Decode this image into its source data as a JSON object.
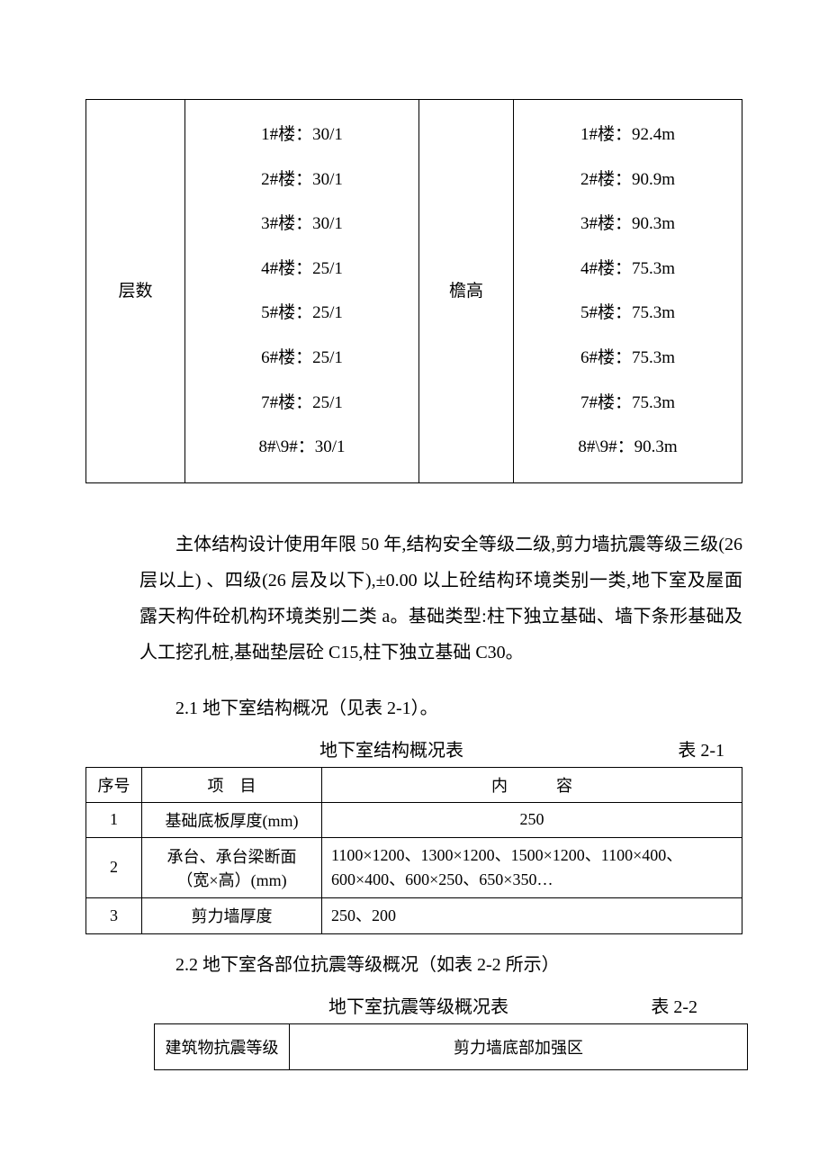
{
  "table1": {
    "col1_label": "层数",
    "col2_lines": [
      "1#楼：30/1",
      "2#楼：30/1",
      "3#楼：30/1",
      "4#楼：25/1",
      "5#楼：25/1",
      "6#楼：25/1",
      "7#楼：25/1",
      "8#\\9#：30/1"
    ],
    "col3_label": "檐高",
    "col4_lines": [
      "1#楼：92.4m",
      "2#楼：90.9m",
      "3#楼：90.3m",
      "4#楼：75.3m",
      "5#楼：75.3m",
      "6#楼：75.3m",
      "7#楼：75.3m",
      "8#\\9#：90.3m"
    ]
  },
  "paragraph1": "主体结构设计使用年限 50 年,结构安全等级二级,剪力墙抗震等级三级(26 层以上) 、四级(26 层及以下),±0.00 以上砼结构环境类别一类,地下室及屋面露天构件砼机构环境类别二类 a。基础类型:柱下独立基础、墙下条形基础及人工挖孔桩,基础垫层砼 C15,柱下独立基础 C30。",
  "subheading21": "2.1 地下室结构概况（见表 2-1）。",
  "caption21_title": "地下室结构概况表",
  "caption21_label": "表 2-1",
  "table2": {
    "headers": {
      "seq": "序号",
      "item": "项　目",
      "content": "内　　　容"
    },
    "rows": [
      {
        "seq": "1",
        "item": "基础底板厚度(mm)",
        "content": "250",
        "align": "center"
      },
      {
        "seq": "2",
        "item": "承台、承台梁断面（宽×高）(mm)",
        "content": "1100×1200、1300×1200、1500×1200、1100×400、600×400、600×250、650×350…",
        "align": "left"
      },
      {
        "seq": "3",
        "item": "剪力墙厚度",
        "content": "250、200",
        "align": "left"
      }
    ]
  },
  "subheading22": "2.2  地下室各部位抗震等级概况（如表 2-2 所示）",
  "caption22_title": "地下室抗震等级概况表",
  "caption22_label": "表 2-2",
  "table3": {
    "c1": "建筑物抗震等级",
    "c2": "剪力墙底部加强区"
  }
}
